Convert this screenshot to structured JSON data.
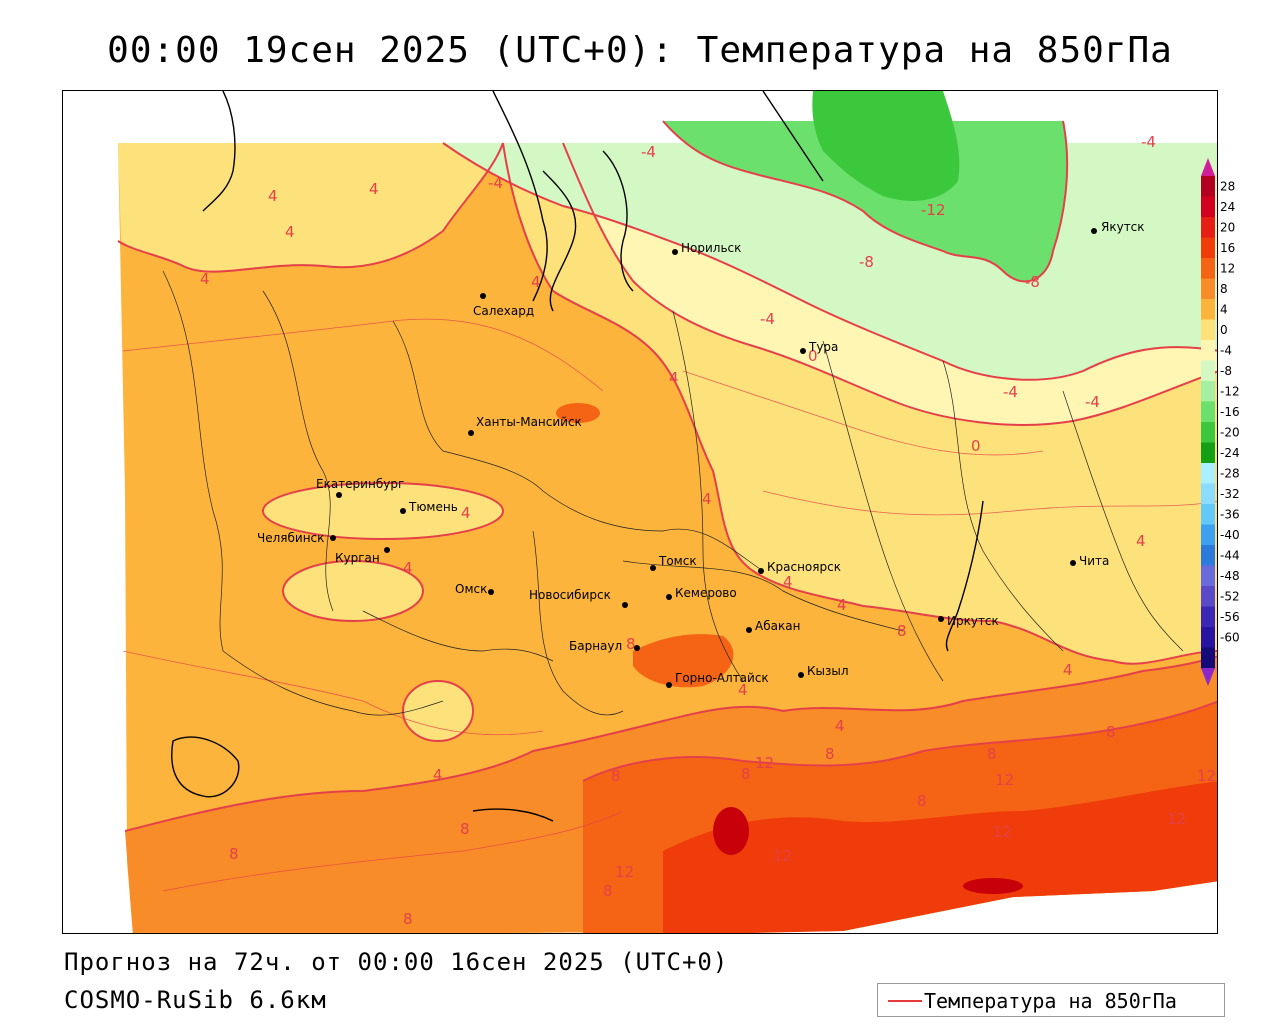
{
  "title": "00:00 19сен 2025 (UTC+0): Температура на 850гПа",
  "forecast_line": "Прогноз на 72ч. от 00:00 16сен 2025 (UTC+0)",
  "model_line": "COSMO-RuSib 6.6км",
  "legend": {
    "label": "Температура на 850гПа",
    "line_color": "#e53a3a"
  },
  "colorbar": {
    "ticks": [
      "28",
      "24",
      "20",
      "16",
      "12",
      "8",
      "4",
      "0",
      "-4",
      "-8",
      "-12",
      "-16",
      "-20",
      "-24",
      "-28",
      "-32",
      "-36",
      "-40",
      "-44",
      "-48",
      "-52",
      "-56",
      "-60"
    ],
    "colors": [
      "#b40020",
      "#d2001e",
      "#e61e14",
      "#f03c0a",
      "#f46414",
      "#f88c28",
      "#fcb43c",
      "#fde17a",
      "#fff6b4",
      "#d4f8c4",
      "#a4f0a0",
      "#6ce06c",
      "#3cc83c",
      "#14a014",
      "#aaf0ff",
      "#8cdcff",
      "#64c8fa",
      "#3c9ff0",
      "#2c7adc",
      "#6a6adc",
      "#5a4ac8",
      "#3c28b4",
      "#2814a0",
      "#140a78"
    ],
    "top_arrow_color": "#d21e96",
    "bottom_arrow_color": "#8c28c8"
  },
  "cities": [
    {
      "name": "Салехард"
    },
    {
      "name": "Норильск"
    },
    {
      "name": "Якутск"
    },
    {
      "name": "Тура"
    },
    {
      "name": "Ханты-Мансийск"
    },
    {
      "name": "Екатеринбург"
    },
    {
      "name": "Тюмень"
    },
    {
      "name": "Челябинск"
    },
    {
      "name": "Курган"
    },
    {
      "name": "Омск"
    },
    {
      "name": "Томск"
    },
    {
      "name": "Новосибирск"
    },
    {
      "name": "Кемерово"
    },
    {
      "name": "Красноярск"
    },
    {
      "name": "Абакан"
    },
    {
      "name": "Барнаул"
    },
    {
      "name": "Горно-Алтайск"
    },
    {
      "name": "Кызыл"
    },
    {
      "name": "Иркутск"
    },
    {
      "name": "Чита"
    }
  ],
  "isotherm_labels": [
    "-4",
    "-4",
    "-8",
    "-12",
    "-8",
    "-4",
    "-4",
    "-4",
    "-4",
    "0",
    "0",
    "4",
    "4",
    "4",
    "4",
    "4",
    "4",
    "4",
    "4",
    "4",
    "4",
    "4",
    "4",
    "4",
    "4",
    "4",
    "4",
    "8",
    "8",
    "8",
    "8",
    "8",
    "8",
    "8",
    "8",
    "8",
    "8",
    "8",
    "8",
    "12",
    "12",
    "12",
    "12",
    "12",
    "12",
    "12"
  ],
  "fill_colors": {
    "warm_orange": "#fcb43c",
    "light_yellow": "#fde17a",
    "pale_yellow": "#fff6b4",
    "orange": "#f88c28",
    "red_orange": "#f46414",
    "red": "#f03c0a",
    "dark_red": "#c8000a",
    "pale_green": "#d4f8c4",
    "light_green": "#a4f0a0",
    "green": "#6ce06c",
    "dark_green": "#3cc83c"
  }
}
